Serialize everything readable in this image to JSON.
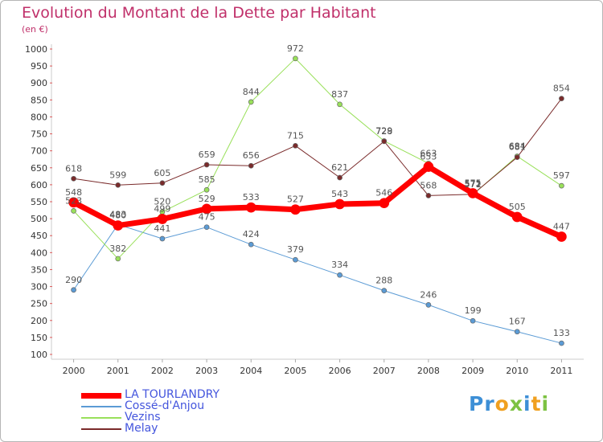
{
  "chart_data": {
    "type": "line",
    "title": "Evolution du Montant de la Dette par Habitant",
    "subtitle": "(en €)",
    "x": [
      "2000",
      "2001",
      "2002",
      "2003",
      "2004",
      "2005",
      "2006",
      "2007",
      "2008",
      "2009",
      "2010",
      "2011"
    ],
    "ylim": [
      100,
      1000
    ],
    "yticks": [
      100,
      150,
      200,
      250,
      300,
      350,
      400,
      450,
      500,
      550,
      600,
      650,
      700,
      750,
      800,
      850,
      900,
      950,
      1000
    ],
    "grid": false,
    "legend_position": "bottom-left",
    "series": [
      {
        "name": "LA TOURLANDRY",
        "color": "#ff0000",
        "width": 7,
        "values": [
          548,
          480,
          499,
          529,
          533,
          527,
          543,
          546,
          653,
          575,
          505,
          447
        ]
      },
      {
        "name": "Cossé-d'Anjou",
        "color": "#5b9bd5",
        "width": 1,
        "values": [
          290,
          483,
          441,
          475,
          424,
          379,
          334,
          288,
          246,
          199,
          167,
          133
        ]
      },
      {
        "name": "Vezins",
        "color": "#99e05a",
        "width": 1,
        "values": [
          523,
          382,
          520,
          585,
          844,
          972,
          837,
          729,
          663,
          571,
          684,
          597
        ]
      },
      {
        "name": "Melay",
        "color": "#7a2b2b",
        "width": 1,
        "values": [
          618,
          599,
          605,
          659,
          656,
          715,
          621,
          728,
          568,
          572,
          681,
          854
        ]
      }
    ]
  },
  "brand": {
    "letters": [
      "P",
      "r",
      "o",
      "x",
      "i",
      "t",
      "i"
    ],
    "colors": [
      "#3d8fd6",
      "#3d8fd6",
      "#f0a020",
      "#7dc242",
      "#3d8fd6",
      "#f0a020",
      "#7dc242"
    ],
    "icon": "proxiti-logo"
  }
}
